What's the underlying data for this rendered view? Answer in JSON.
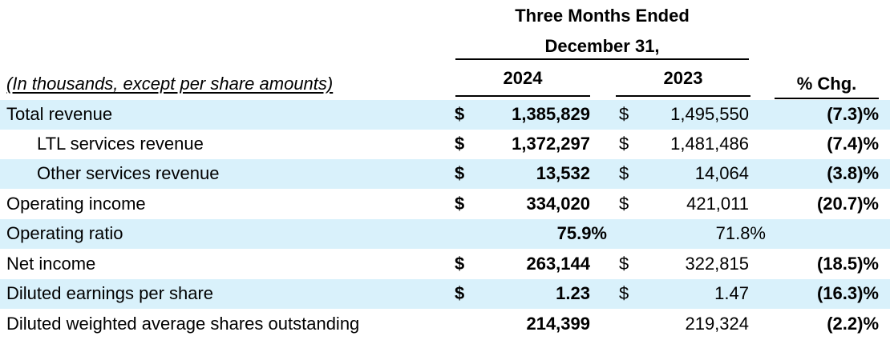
{
  "header": {
    "period_line1": "Three Months Ended",
    "period_line2": "December 31,",
    "caption": "(In thousands, except per share amounts)",
    "col_2024": "2024",
    "col_2023": "2023",
    "col_pct": "% Chg."
  },
  "rows": [
    {
      "label": "Total revenue",
      "dollar_2024": "$",
      "value_2024": "1,385,829",
      "dollar_2023": "$",
      "value_2023": "1,495,550",
      "pct_change": "(7.3)%"
    },
    {
      "label": "LTL services revenue",
      "dollar_2024": "$",
      "value_2024": "1,372,297",
      "dollar_2023": "$",
      "value_2023": "1,481,486",
      "pct_change": "(7.4)%"
    },
    {
      "label": "Other services revenue",
      "dollar_2024": "$",
      "value_2024": "13,532",
      "dollar_2023": "$",
      "value_2023": "14,064",
      "pct_change": "(3.8)%"
    },
    {
      "label": "Operating income",
      "dollar_2024": "$",
      "value_2024": "334,020",
      "dollar_2023": "$",
      "value_2023": "421,011",
      "pct_change": "(20.7)%"
    },
    {
      "label": "Operating ratio",
      "value_2024": "75.9%",
      "value_2023": "71.8%"
    },
    {
      "label": "Net income",
      "dollar_2024": "$",
      "value_2024": "263,144",
      "dollar_2023": "$",
      "value_2023": "322,815",
      "pct_change": "(18.5)%"
    },
    {
      "label": "Diluted earnings per share",
      "dollar_2024": "$",
      "value_2024": "1.23",
      "dollar_2023": "$",
      "value_2023": "1.47",
      "pct_change": "(16.3)%"
    },
    {
      "label": "Diluted weighted average shares outstanding",
      "value_2024": "214,399",
      "value_2023": "219,324",
      "pct_change": "(2.2)%"
    }
  ],
  "colors": {
    "row_shade": "#d9f1fb",
    "text": "#000000"
  }
}
